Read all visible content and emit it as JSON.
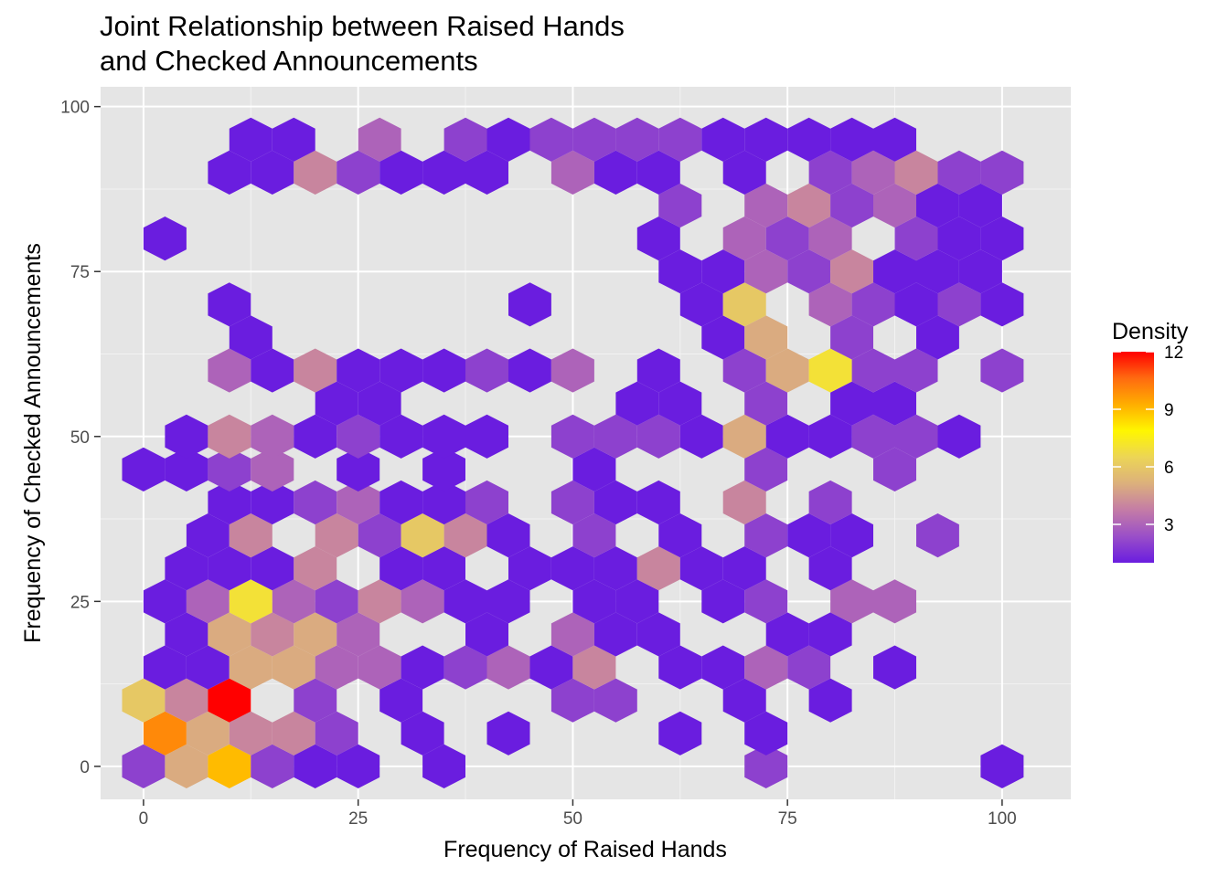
{
  "chart_data": {
    "type": "hexbin",
    "title": "Joint Relationship between Raised Hands and Checked Announcements",
    "title_lines": [
      "Joint Relationship between Raised Hands",
      "and Checked Announcements"
    ],
    "xlabel": "Frequency of Raised Hands",
    "ylabel": "Frequency of Checked Announcements",
    "xlim": [
      -5,
      108
    ],
    "ylim": [
      -5,
      103
    ],
    "x_ticks": [
      0,
      25,
      50,
      75,
      100
    ],
    "y_ticks": [
      0,
      25,
      50,
      75,
      100
    ],
    "x_tick_labels": [
      "0",
      "25",
      "50",
      "75",
      "100"
    ],
    "y_tick_labels": [
      "0",
      "25",
      "50",
      "75",
      "100"
    ],
    "grid": true,
    "panel_background": "#e5e5e5",
    "legend": {
      "title": "Density",
      "placement": "right",
      "min": 1,
      "max": 12,
      "ticks": [
        3,
        6,
        9,
        12
      ],
      "tick_labels": [
        "3",
        "6",
        "9",
        "12"
      ],
      "colors": [
        "#6a1ddf",
        "#9a4fc8",
        "#c47ca6",
        "#dcb07c",
        "#ecd556",
        "#fff600",
        "#ffae00",
        "#ff6a10",
        "#ff0000"
      ]
    },
    "bins": [
      {
        "x": 0,
        "y": 0,
        "count": 2
      },
      {
        "x": 5,
        "y": 0,
        "count": 5
      },
      {
        "x": 10,
        "y": 0,
        "count": 9
      },
      {
        "x": 15,
        "y": 0,
        "count": 2
      },
      {
        "x": 20,
        "y": 0,
        "count": 1
      },
      {
        "x": 25,
        "y": 0,
        "count": 1
      },
      {
        "x": 35,
        "y": 0,
        "count": 1
      },
      {
        "x": 72.5,
        "y": 0,
        "count": 2
      },
      {
        "x": 100,
        "y": 0,
        "count": 1
      },
      {
        "x": 2.5,
        "y": 5,
        "count": 10
      },
      {
        "x": 7.5,
        "y": 5,
        "count": 5
      },
      {
        "x": 12.5,
        "y": 5,
        "count": 4
      },
      {
        "x": 17.5,
        "y": 5,
        "count": 4
      },
      {
        "x": 22.5,
        "y": 5,
        "count": 2
      },
      {
        "x": 32.5,
        "y": 5,
        "count": 1
      },
      {
        "x": 42.5,
        "y": 5,
        "count": 1
      },
      {
        "x": 62.5,
        "y": 5,
        "count": 1
      },
      {
        "x": 72.5,
        "y": 5,
        "count": 1
      },
      {
        "x": 0,
        "y": 10,
        "count": 6
      },
      {
        "x": 5,
        "y": 10,
        "count": 4
      },
      {
        "x": 10,
        "y": 10,
        "count": 12
      },
      {
        "x": 20,
        "y": 10,
        "count": 2
      },
      {
        "x": 30,
        "y": 10,
        "count": 1
      },
      {
        "x": 50,
        "y": 10,
        "count": 2
      },
      {
        "x": 55,
        "y": 10,
        "count": 2
      },
      {
        "x": 70,
        "y": 10,
        "count": 1
      },
      {
        "x": 80,
        "y": 10,
        "count": 1
      },
      {
        "x": 2.5,
        "y": 15,
        "count": 1
      },
      {
        "x": 7.5,
        "y": 15,
        "count": 1
      },
      {
        "x": 12.5,
        "y": 15,
        "count": 5
      },
      {
        "x": 17.5,
        "y": 15,
        "count": 5
      },
      {
        "x": 22.5,
        "y": 15,
        "count": 3
      },
      {
        "x": 27.5,
        "y": 15,
        "count": 3
      },
      {
        "x": 32.5,
        "y": 15,
        "count": 1
      },
      {
        "x": 37.5,
        "y": 15,
        "count": 2
      },
      {
        "x": 42.5,
        "y": 15,
        "count": 3
      },
      {
        "x": 47.5,
        "y": 15,
        "count": 1
      },
      {
        "x": 52.5,
        "y": 15,
        "count": 4
      },
      {
        "x": 62.5,
        "y": 15,
        "count": 1
      },
      {
        "x": 67.5,
        "y": 15,
        "count": 1
      },
      {
        "x": 72.5,
        "y": 15,
        "count": 3
      },
      {
        "x": 77.5,
        "y": 15,
        "count": 2
      },
      {
        "x": 87.5,
        "y": 15,
        "count": 1
      },
      {
        "x": 5,
        "y": 20,
        "count": 1
      },
      {
        "x": 10,
        "y": 20,
        "count": 5
      },
      {
        "x": 15,
        "y": 20,
        "count": 4
      },
      {
        "x": 20,
        "y": 20,
        "count": 5
      },
      {
        "x": 25,
        "y": 20,
        "count": 3
      },
      {
        "x": 40,
        "y": 20,
        "count": 1
      },
      {
        "x": 50,
        "y": 20,
        "count": 3
      },
      {
        "x": 55,
        "y": 20,
        "count": 1
      },
      {
        "x": 60,
        "y": 20,
        "count": 1
      },
      {
        "x": 75,
        "y": 20,
        "count": 1
      },
      {
        "x": 80,
        "y": 20,
        "count": 1
      },
      {
        "x": 2.5,
        "y": 25,
        "count": 1
      },
      {
        "x": 7.5,
        "y": 25,
        "count": 3
      },
      {
        "x": 12.5,
        "y": 25,
        "count": 7
      },
      {
        "x": 17.5,
        "y": 25,
        "count": 3
      },
      {
        "x": 22.5,
        "y": 25,
        "count": 2
      },
      {
        "x": 27.5,
        "y": 25,
        "count": 4
      },
      {
        "x": 32.5,
        "y": 25,
        "count": 3
      },
      {
        "x": 37.5,
        "y": 25,
        "count": 1
      },
      {
        "x": 42.5,
        "y": 25,
        "count": 1
      },
      {
        "x": 52.5,
        "y": 25,
        "count": 1
      },
      {
        "x": 57.5,
        "y": 25,
        "count": 1
      },
      {
        "x": 67.5,
        "y": 25,
        "count": 1
      },
      {
        "x": 72.5,
        "y": 25,
        "count": 2
      },
      {
        "x": 82.5,
        "y": 25,
        "count": 3
      },
      {
        "x": 87.5,
        "y": 25,
        "count": 3
      },
      {
        "x": 5,
        "y": 30,
        "count": 1
      },
      {
        "x": 10,
        "y": 30,
        "count": 1
      },
      {
        "x": 15,
        "y": 30,
        "count": 1
      },
      {
        "x": 20,
        "y": 30,
        "count": 4
      },
      {
        "x": 30,
        "y": 30,
        "count": 1
      },
      {
        "x": 35,
        "y": 30,
        "count": 1
      },
      {
        "x": 45,
        "y": 30,
        "count": 1
      },
      {
        "x": 50,
        "y": 30,
        "count": 1
      },
      {
        "x": 55,
        "y": 30,
        "count": 1
      },
      {
        "x": 60,
        "y": 30,
        "count": 4
      },
      {
        "x": 65,
        "y": 30,
        "count": 1
      },
      {
        "x": 70,
        "y": 30,
        "count": 1
      },
      {
        "x": 80,
        "y": 30,
        "count": 1
      },
      {
        "x": 7.5,
        "y": 35,
        "count": 1
      },
      {
        "x": 12.5,
        "y": 35,
        "count": 4
      },
      {
        "x": 22.5,
        "y": 35,
        "count": 4
      },
      {
        "x": 27.5,
        "y": 35,
        "count": 2
      },
      {
        "x": 32.5,
        "y": 35,
        "count": 6
      },
      {
        "x": 37.5,
        "y": 35,
        "count": 4
      },
      {
        "x": 42.5,
        "y": 35,
        "count": 1
      },
      {
        "x": 52.5,
        "y": 35,
        "count": 2
      },
      {
        "x": 62.5,
        "y": 35,
        "count": 1
      },
      {
        "x": 72.5,
        "y": 35,
        "count": 2
      },
      {
        "x": 77.5,
        "y": 35,
        "count": 1
      },
      {
        "x": 82.5,
        "y": 35,
        "count": 1
      },
      {
        "x": 92.5,
        "y": 35,
        "count": 2
      },
      {
        "x": 10,
        "y": 40,
        "count": 1
      },
      {
        "x": 15,
        "y": 40,
        "count": 1
      },
      {
        "x": 20,
        "y": 40,
        "count": 2
      },
      {
        "x": 25,
        "y": 40,
        "count": 3
      },
      {
        "x": 30,
        "y": 40,
        "count": 1
      },
      {
        "x": 35,
        "y": 40,
        "count": 1
      },
      {
        "x": 40,
        "y": 40,
        "count": 2
      },
      {
        "x": 50,
        "y": 40,
        "count": 2
      },
      {
        "x": 55,
        "y": 40,
        "count": 1
      },
      {
        "x": 60,
        "y": 40,
        "count": 1
      },
      {
        "x": 70,
        "y": 40,
        "count": 4
      },
      {
        "x": 80,
        "y": 40,
        "count": 2
      },
      {
        "x": 0,
        "y": 45,
        "count": 1
      },
      {
        "x": 5,
        "y": 45,
        "count": 1
      },
      {
        "x": 10,
        "y": 45,
        "count": 2
      },
      {
        "x": 15,
        "y": 45,
        "count": 3
      },
      {
        "x": 25,
        "y": 45,
        "count": 1
      },
      {
        "x": 35,
        "y": 45,
        "count": 1
      },
      {
        "x": 52.5,
        "y": 45,
        "count": 1
      },
      {
        "x": 72.5,
        "y": 45,
        "count": 2
      },
      {
        "x": 87.5,
        "y": 45,
        "count": 2
      },
      {
        "x": 5,
        "y": 50,
        "count": 1
      },
      {
        "x": 10,
        "y": 50,
        "count": 4
      },
      {
        "x": 15,
        "y": 50,
        "count": 3
      },
      {
        "x": 20,
        "y": 50,
        "count": 1
      },
      {
        "x": 25,
        "y": 50,
        "count": 2
      },
      {
        "x": 30,
        "y": 50,
        "count": 1
      },
      {
        "x": 35,
        "y": 50,
        "count": 1
      },
      {
        "x": 40,
        "y": 50,
        "count": 1
      },
      {
        "x": 50,
        "y": 50,
        "count": 2
      },
      {
        "x": 55,
        "y": 50,
        "count": 2
      },
      {
        "x": 60,
        "y": 50,
        "count": 2
      },
      {
        "x": 65,
        "y": 50,
        "count": 1
      },
      {
        "x": 70,
        "y": 50,
        "count": 5
      },
      {
        "x": 75,
        "y": 50,
        "count": 1
      },
      {
        "x": 80,
        "y": 50,
        "count": 1
      },
      {
        "x": 85,
        "y": 50,
        "count": 2
      },
      {
        "x": 90,
        "y": 50,
        "count": 2
      },
      {
        "x": 95,
        "y": 50,
        "count": 1
      },
      {
        "x": 22.5,
        "y": 55,
        "count": 1
      },
      {
        "x": 27.5,
        "y": 55,
        "count": 1
      },
      {
        "x": 57.5,
        "y": 55,
        "count": 1
      },
      {
        "x": 62.5,
        "y": 55,
        "count": 1
      },
      {
        "x": 72.5,
        "y": 55,
        "count": 2
      },
      {
        "x": 82.5,
        "y": 55,
        "count": 1
      },
      {
        "x": 87.5,
        "y": 55,
        "count": 1
      },
      {
        "x": 10,
        "y": 60,
        "count": 3
      },
      {
        "x": 15,
        "y": 60,
        "count": 1
      },
      {
        "x": 20,
        "y": 60,
        "count": 4
      },
      {
        "x": 25,
        "y": 60,
        "count": 1
      },
      {
        "x": 30,
        "y": 60,
        "count": 1
      },
      {
        "x": 35,
        "y": 60,
        "count": 1
      },
      {
        "x": 40,
        "y": 60,
        "count": 2
      },
      {
        "x": 45,
        "y": 60,
        "count": 1
      },
      {
        "x": 50,
        "y": 60,
        "count": 3
      },
      {
        "x": 60,
        "y": 60,
        "count": 1
      },
      {
        "x": 70,
        "y": 60,
        "count": 2
      },
      {
        "x": 75,
        "y": 60,
        "count": 5
      },
      {
        "x": 80,
        "y": 60,
        "count": 7
      },
      {
        "x": 85,
        "y": 60,
        "count": 2
      },
      {
        "x": 90,
        "y": 60,
        "count": 2
      },
      {
        "x": 100,
        "y": 60,
        "count": 2
      },
      {
        "x": 12.5,
        "y": 65,
        "count": 1
      },
      {
        "x": 67.5,
        "y": 65,
        "count": 1
      },
      {
        "x": 72.5,
        "y": 65,
        "count": 5
      },
      {
        "x": 82.5,
        "y": 65,
        "count": 2
      },
      {
        "x": 92.5,
        "y": 65,
        "count": 1
      },
      {
        "x": 10,
        "y": 70,
        "count": 1
      },
      {
        "x": 45,
        "y": 70,
        "count": 1
      },
      {
        "x": 65,
        "y": 70,
        "count": 1
      },
      {
        "x": 70,
        "y": 70,
        "count": 6
      },
      {
        "x": 80,
        "y": 70,
        "count": 3
      },
      {
        "x": 85,
        "y": 70,
        "count": 2
      },
      {
        "x": 90,
        "y": 70,
        "count": 1
      },
      {
        "x": 95,
        "y": 70,
        "count": 2
      },
      {
        "x": 100,
        "y": 70,
        "count": 1
      },
      {
        "x": 62.5,
        "y": 75,
        "count": 1
      },
      {
        "x": 67.5,
        "y": 75,
        "count": 1
      },
      {
        "x": 72.5,
        "y": 75,
        "count": 3
      },
      {
        "x": 77.5,
        "y": 75,
        "count": 2
      },
      {
        "x": 82.5,
        "y": 75,
        "count": 4
      },
      {
        "x": 87.5,
        "y": 75,
        "count": 1
      },
      {
        "x": 92.5,
        "y": 75,
        "count": 1
      },
      {
        "x": 97.5,
        "y": 75,
        "count": 1
      },
      {
        "x": 2.5,
        "y": 80,
        "count": 1
      },
      {
        "x": 60,
        "y": 80,
        "count": 1
      },
      {
        "x": 70,
        "y": 80,
        "count": 3
      },
      {
        "x": 75,
        "y": 80,
        "count": 2
      },
      {
        "x": 80,
        "y": 80,
        "count": 3
      },
      {
        "x": 90,
        "y": 80,
        "count": 2
      },
      {
        "x": 95,
        "y": 80,
        "count": 1
      },
      {
        "x": 100,
        "y": 80,
        "count": 1
      },
      {
        "x": 62.5,
        "y": 85,
        "count": 2
      },
      {
        "x": 72.5,
        "y": 85,
        "count": 3
      },
      {
        "x": 77.5,
        "y": 85,
        "count": 4
      },
      {
        "x": 82.5,
        "y": 85,
        "count": 2
      },
      {
        "x": 87.5,
        "y": 85,
        "count": 3
      },
      {
        "x": 92.5,
        "y": 85,
        "count": 1
      },
      {
        "x": 97.5,
        "y": 85,
        "count": 1
      },
      {
        "x": 10,
        "y": 90,
        "count": 1
      },
      {
        "x": 15,
        "y": 90,
        "count": 1
      },
      {
        "x": 20,
        "y": 90,
        "count": 4
      },
      {
        "x": 25,
        "y": 90,
        "count": 2
      },
      {
        "x": 30,
        "y": 90,
        "count": 1
      },
      {
        "x": 35,
        "y": 90,
        "count": 1
      },
      {
        "x": 40,
        "y": 90,
        "count": 1
      },
      {
        "x": 50,
        "y": 90,
        "count": 3
      },
      {
        "x": 55,
        "y": 90,
        "count": 1
      },
      {
        "x": 60,
        "y": 90,
        "count": 1
      },
      {
        "x": 70,
        "y": 90,
        "count": 1
      },
      {
        "x": 80,
        "y": 90,
        "count": 2
      },
      {
        "x": 85,
        "y": 90,
        "count": 3
      },
      {
        "x": 90,
        "y": 90,
        "count": 4
      },
      {
        "x": 95,
        "y": 90,
        "count": 2
      },
      {
        "x": 100,
        "y": 90,
        "count": 2
      },
      {
        "x": 12.5,
        "y": 95,
        "count": 1
      },
      {
        "x": 17.5,
        "y": 95,
        "count": 1
      },
      {
        "x": 27.5,
        "y": 95,
        "count": 3
      },
      {
        "x": 37.5,
        "y": 95,
        "count": 2
      },
      {
        "x": 42.5,
        "y": 95,
        "count": 1
      },
      {
        "x": 47.5,
        "y": 95,
        "count": 2
      },
      {
        "x": 52.5,
        "y": 95,
        "count": 2
      },
      {
        "x": 57.5,
        "y": 95,
        "count": 2
      },
      {
        "x": 62.5,
        "y": 95,
        "count": 2
      },
      {
        "x": 67.5,
        "y": 95,
        "count": 1
      },
      {
        "x": 72.5,
        "y": 95,
        "count": 1
      },
      {
        "x": 77.5,
        "y": 95,
        "count": 1
      },
      {
        "x": 82.5,
        "y": 95,
        "count": 1
      },
      {
        "x": 87.5,
        "y": 95,
        "count": 1
      }
    ]
  }
}
